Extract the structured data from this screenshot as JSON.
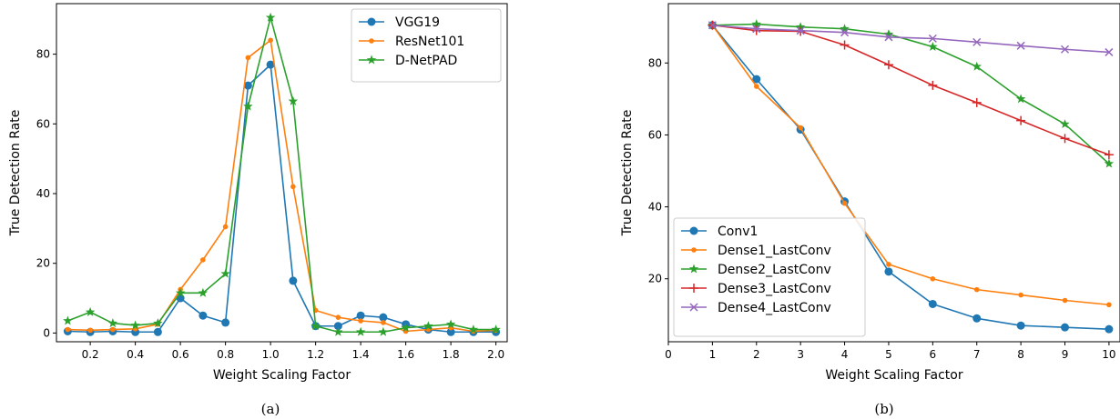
{
  "chart_data": [
    {
      "type": "line",
      "caption": "(a)",
      "xlabel": "Weight Scaling Factor",
      "ylabel": "True Detection Rate",
      "xlim": [
        0.05,
        2.05
      ],
      "ylim": [
        -2.5,
        94.5
      ],
      "xticks": [
        0.2,
        0.4,
        0.6,
        0.8,
        1.0,
        1.2,
        1.4,
        1.6,
        1.8,
        2.0
      ],
      "xtick_labels": [
        "0.2",
        "0.4",
        "0.6",
        "0.8",
        "1.0",
        "1.2",
        "1.4",
        "1.6",
        "1.8",
        "2.0"
      ],
      "yticks": [
        0,
        20,
        40,
        60,
        80
      ],
      "ytick_labels": [
        "0",
        "20",
        "40",
        "60",
        "80"
      ],
      "grid": false,
      "legend_position": "top-right",
      "x": [
        0.1,
        0.2,
        0.3,
        0.4,
        0.5,
        0.6,
        0.7,
        0.8,
        0.9,
        1.0,
        1.1,
        1.2,
        1.3,
        1.4,
        1.5,
        1.6,
        1.7,
        1.8,
        1.9,
        2.0
      ],
      "series": [
        {
          "name": "VGG19",
          "color": "#1f77b4",
          "marker": "circle",
          "values": [
            0.5,
            0.3,
            0.5,
            0.3,
            0.3,
            10,
            5,
            3,
            71,
            77,
            15,
            2,
            2,
            5,
            4.5,
            2.5,
            1,
            0.3,
            0.3,
            0.3
          ]
        },
        {
          "name": "ResNet101",
          "color": "#ff7f0e",
          "marker": "dot",
          "values": [
            1,
            0.8,
            1,
            1.2,
            2.5,
            12.5,
            21,
            30.5,
            79,
            84,
            42,
            6.5,
            4.5,
            3.5,
            3,
            0.5,
            1,
            1.5,
            0.5,
            0.8
          ]
        },
        {
          "name": "D-NetPAD",
          "color": "#2ca02c",
          "marker": "star",
          "values": [
            3.5,
            6,
            2.8,
            2.2,
            2.8,
            11.5,
            11.5,
            17,
            65,
            90.5,
            66.5,
            2,
            0.3,
            0.3,
            0.3,
            1.5,
            2,
            2.5,
            1,
            1
          ]
        }
      ]
    },
    {
      "type": "line",
      "caption": "(b)",
      "xlabel": "Weight Scaling Factor",
      "ylabel": "True Detection Rate",
      "xlim": [
        0,
        10.25
      ],
      "ylim": [
        2.5,
        96.5
      ],
      "xticks": [
        0,
        1,
        2,
        3,
        4,
        5,
        6,
        7,
        8,
        9,
        10
      ],
      "xtick_labels": [
        "0",
        "1",
        "2",
        "3",
        "4",
        "5",
        "6",
        "7",
        "8",
        "9",
        "10"
      ],
      "yticks": [
        20,
        40,
        60,
        80
      ],
      "ytick_labels": [
        "20",
        "40",
        "60",
        "80"
      ],
      "grid": false,
      "legend_position": "bottom-left",
      "x": [
        1,
        2,
        3,
        4,
        5,
        6,
        7,
        8,
        9,
        10
      ],
      "series": [
        {
          "name": "Conv1",
          "color": "#1f77b4",
          "marker": "circle",
          "values": [
            90.5,
            75.5,
            61.5,
            41.5,
            22,
            13,
            9,
            7,
            6.5,
            6
          ]
        },
        {
          "name": "Dense1_LastConv",
          "color": "#ff7f0e",
          "marker": "dot",
          "values": [
            90.5,
            73.5,
            62,
            41,
            24,
            20,
            17,
            15.5,
            14,
            12.8
          ]
        },
        {
          "name": "Dense2_LastConv",
          "color": "#2ca02c",
          "marker": "star",
          "values": [
            90.5,
            90.8,
            90,
            89.5,
            88,
            84.5,
            79,
            70,
            63,
            52
          ]
        },
        {
          "name": "Dense3_LastConv",
          "color": "#d62728",
          "marker": "plus",
          "values": [
            90.5,
            89,
            88.8,
            85,
            79.5,
            73.8,
            69,
            64,
            59,
            54.5
          ]
        },
        {
          "name": "Dense4_LastConv",
          "color": "#9467bd",
          "marker": "x",
          "values": [
            90.5,
            89.5,
            89,
            88.5,
            87.2,
            86.8,
            85.8,
            84.8,
            83.8,
            83
          ]
        }
      ]
    }
  ]
}
